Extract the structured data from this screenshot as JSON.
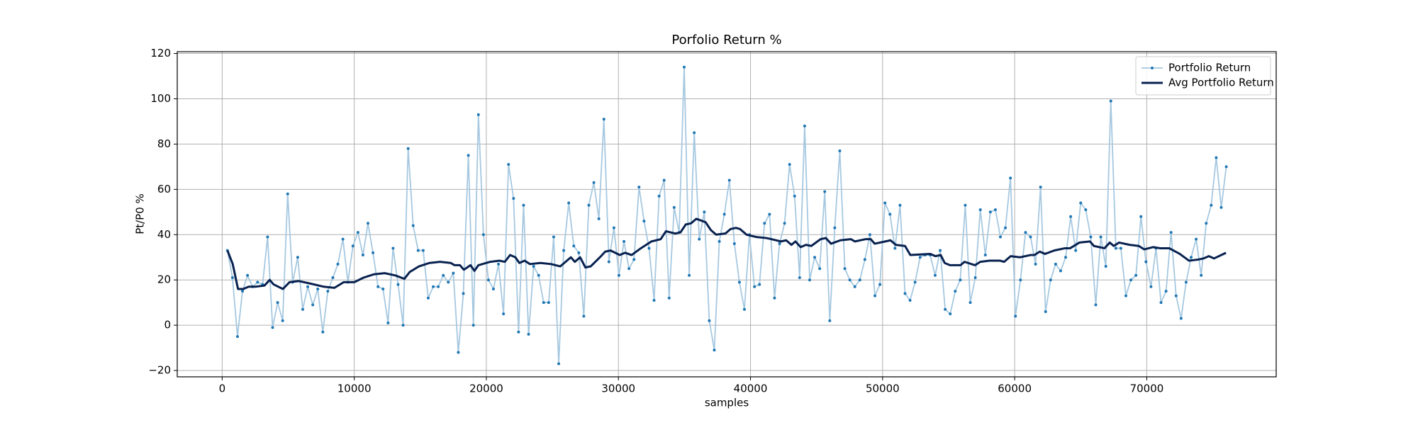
{
  "chart_data": {
    "type": "line",
    "title": "Porfolio Return %",
    "x_label": "samples",
    "y_label": "Pt/P0 %",
    "xlim": [
      -3400,
      79800
    ],
    "ylim": [
      -22.8,
      120.8
    ],
    "xticks": [
      0,
      10000,
      20000,
      30000,
      40000,
      50000,
      60000,
      70000
    ],
    "yticks": [
      {
        "value": -20,
        "label": "−20"
      },
      0,
      20,
      40,
      60,
      80,
      100,
      120
    ],
    "grid": true,
    "legend": "upper right",
    "series": [
      {
        "name": "Portfolio Return",
        "color": "#a6c8e0",
        "marker_color": "#1f77b4",
        "x": [
          400,
          780,
          1160,
          1540,
          1920,
          2300,
          2680,
          3060,
          3440,
          3820,
          4200,
          4580,
          4960,
          5340,
          5720,
          6100,
          6480,
          6860,
          7240,
          7620,
          8000,
          8380,
          8760,
          9140,
          9520,
          9900,
          10280,
          10660,
          11040,
          11420,
          11800,
          12180,
          12560,
          12940,
          13320,
          13700,
          14080,
          14460,
          14840,
          15220,
          15600,
          15980,
          16360,
          16740,
          17120,
          17500,
          17880,
          18260,
          18640,
          19020,
          19400,
          19780,
          20160,
          20540,
          20920,
          21300,
          21680,
          22060,
          22440,
          22820,
          23200,
          23580,
          23960,
          24340,
          24720,
          25100,
          25480,
          25860,
          26240,
          26620,
          27000,
          27380,
          27760,
          28140,
          28520,
          28900,
          29280,
          29660,
          30040,
          30420,
          30800,
          31180,
          31560,
          31940,
          32320,
          32700,
          33080,
          33460,
          33840,
          34220,
          34600,
          34980,
          35360,
          35740,
          36120,
          36500,
          36880,
          37260,
          37640,
          38020,
          38400,
          38780,
          39160,
          39540,
          39920,
          40300,
          40680,
          41060,
          41440,
          41820,
          42200,
          42580,
          42960,
          43340,
          43720,
          44100,
          44480,
          44860,
          45240,
          45620,
          46000,
          46380,
          46760,
          47140,
          47520,
          47900,
          48280,
          48660,
          49040,
          49420,
          49800,
          50180,
          50560,
          50940,
          51320,
          51700,
          52080,
          52460,
          52840,
          53220,
          53600,
          53980,
          54360,
          54740,
          55120,
          55500,
          55880,
          56260,
          56640,
          57020,
          57400,
          57780,
          58160,
          58540,
          58920,
          59300,
          59680,
          60060,
          60440,
          60820,
          61200,
          61580,
          61960,
          62340,
          62720,
          63100,
          63480,
          63860,
          64240,
          64620,
          65000,
          65380,
          65760,
          66140,
          66520,
          66900,
          67280,
          67660,
          68040,
          68420,
          68800,
          69180,
          69560,
          69940,
          70320,
          70700,
          71080,
          71460,
          71840,
          72220,
          72600,
          72980,
          73360,
          73740,
          74120,
          74500,
          74880,
          75260,
          75640,
          76020
        ],
        "values": [
          33,
          21,
          -5,
          15,
          22,
          17,
          19,
          18,
          39,
          -1,
          10,
          2,
          58,
          19,
          30,
          7,
          17,
          9,
          16,
          -3,
          15,
          21,
          27,
          38,
          19,
          35,
          41,
          31,
          45,
          32,
          17,
          16,
          1,
          34,
          18,
          0,
          78,
          44,
          33,
          33,
          12,
          17,
          17,
          22,
          19,
          23,
          -12,
          14,
          75,
          0,
          93,
          40,
          20,
          16,
          27,
          5,
          71,
          56,
          -3,
          53,
          -4,
          26,
          22,
          10,
          10,
          39,
          -17,
          33,
          54,
          35,
          32,
          4,
          53,
          63,
          47,
          91,
          28,
          43,
          22,
          37,
          25,
          29,
          61,
          46,
          34,
          11,
          57,
          64,
          12,
          52,
          41,
          114,
          22,
          85,
          38,
          50,
          2,
          -11,
          37,
          49,
          64,
          36,
          19,
          7,
          40,
          17,
          18,
          45,
          49,
          12,
          36,
          45,
          71,
          57,
          21,
          88,
          20,
          30,
          25,
          59,
          2,
          43,
          77,
          25,
          20,
          17,
          20,
          29,
          40,
          13,
          18,
          54,
          49,
          34,
          53,
          14,
          11,
          19,
          30,
          31,
          31,
          22,
          33,
          7,
          5,
          15,
          20,
          53,
          10,
          21,
          51,
          31,
          50,
          51,
          39,
          43,
          65,
          4,
          20,
          41,
          39,
          27,
          61,
          6,
          20,
          27,
          24,
          30,
          48,
          33,
          54,
          51,
          39,
          9,
          39,
          26,
          99,
          34,
          34,
          13,
          20,
          22,
          48,
          28,
          17,
          34,
          10,
          15,
          41,
          13,
          3,
          19,
          30,
          38,
          22,
          45,
          53,
          74,
          52,
          70
        ]
      },
      {
        "name": "Avg Portfolio Return",
        "color": "#08214f",
        "x": [
          400,
          800,
          1200,
          1600,
          2000,
          2500,
          3200,
          3600,
          3900,
          4600,
          5100,
          5800,
          6600,
          7700,
          8500,
          9200,
          10000,
          10700,
          11500,
          12300,
          13100,
          13800,
          14200,
          14900,
          15700,
          16500,
          17300,
          17600,
          18000,
          18300,
          18800,
          19100,
          19400,
          20300,
          21000,
          21400,
          21800,
          22200,
          22500,
          22900,
          23300,
          24100,
          24900,
          25600,
          26400,
          26700,
          27100,
          27500,
          27900,
          28600,
          29000,
          29400,
          30100,
          30500,
          31000,
          31700,
          32500,
          33200,
          33600,
          34300,
          34700,
          35100,
          35500,
          35900,
          36600,
          37000,
          37400,
          38100,
          38500,
          38900,
          39200,
          39700,
          40400,
          41200,
          41600,
          42300,
          42700,
          43100,
          43400,
          43800,
          44200,
          44600,
          45300,
          45700,
          46100,
          46800,
          47600,
          47900,
          48700,
          49100,
          49400,
          50200,
          50600,
          51000,
          51700,
          52100,
          53600,
          54000,
          54400,
          54700,
          55100,
          55900,
          56200,
          57000,
          57400,
          58100,
          58900,
          59200,
          59700,
          60400,
          61200,
          61500,
          61900,
          62300,
          63000,
          63800,
          64200,
          64900,
          65700,
          66000,
          66800,
          67200,
          67500,
          67900,
          68700,
          69400,
          69800,
          70500,
          71000,
          71700,
          72500,
          73200,
          73900,
          74300,
          74700,
          75100,
          76000
        ],
        "values": [
          33,
          27,
          16,
          16,
          17,
          17,
          17.5,
          20,
          18,
          16,
          19,
          19.5,
          18.5,
          17,
          16.5,
          19,
          19,
          21,
          22.5,
          23,
          22,
          20.5,
          23.5,
          26,
          27.5,
          28,
          27.5,
          26.5,
          26.5,
          24.5,
          26.5,
          24,
          26.5,
          28,
          28.5,
          28,
          31,
          30,
          27.5,
          28.5,
          27,
          27.5,
          27,
          26,
          30,
          28,
          30,
          25.5,
          26,
          30,
          32.5,
          33,
          31,
          32,
          31,
          34,
          37,
          38,
          41.5,
          40.5,
          41,
          44.5,
          45,
          47,
          45.5,
          42,
          40,
          40.5,
          42.5,
          43,
          42.5,
          40,
          39,
          38.5,
          38,
          37,
          37.5,
          35.5,
          37,
          34.5,
          35.5,
          35,
          38,
          38.5,
          36,
          37.5,
          38,
          37,
          38,
          38,
          36,
          37,
          37.5,
          35.5,
          35,
          31,
          31.5,
          30.5,
          31,
          27.5,
          26.5,
          26.5,
          28,
          26.5,
          28,
          28.5,
          28.5,
          28,
          30.5,
          30,
          31,
          31,
          32.5,
          31.5,
          33,
          34,
          34,
          36.5,
          37,
          35,
          34,
          36.5,
          35,
          36.5,
          35.5,
          35,
          33.5,
          34.5,
          34,
          34,
          31.5,
          28.5,
          29,
          29.5,
          30.5,
          29.5,
          32
        ]
      }
    ]
  }
}
